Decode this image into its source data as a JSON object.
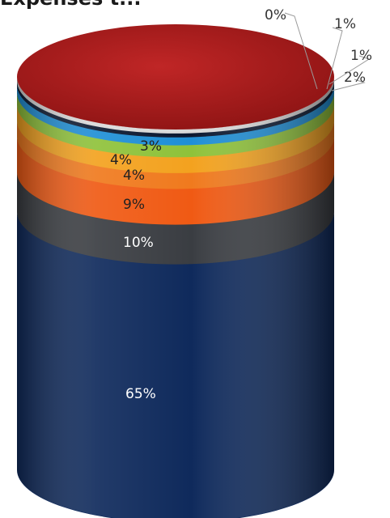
{
  "chart_data": {
    "type": "pie",
    "style": "3d-stacked-cylinder",
    "title": "Expenses t...",
    "values": [
      65,
      10,
      9,
      4,
      4,
      3,
      2,
      1,
      1,
      0
    ],
    "labels": [
      "65%",
      "10%",
      "9%",
      "4%",
      "4%",
      "3%",
      "2%",
      "1%",
      "1%",
      "0%"
    ],
    "colors": [
      "#0f2a5c",
      "#3a3d42",
      "#f05a14",
      "#f07a1e",
      "#f3a21f",
      "#8fc23a",
      "#1f8fd6",
      "#0b1830",
      "#d9d9d9",
      "#b01e1e"
    ],
    "legend": "none"
  }
}
